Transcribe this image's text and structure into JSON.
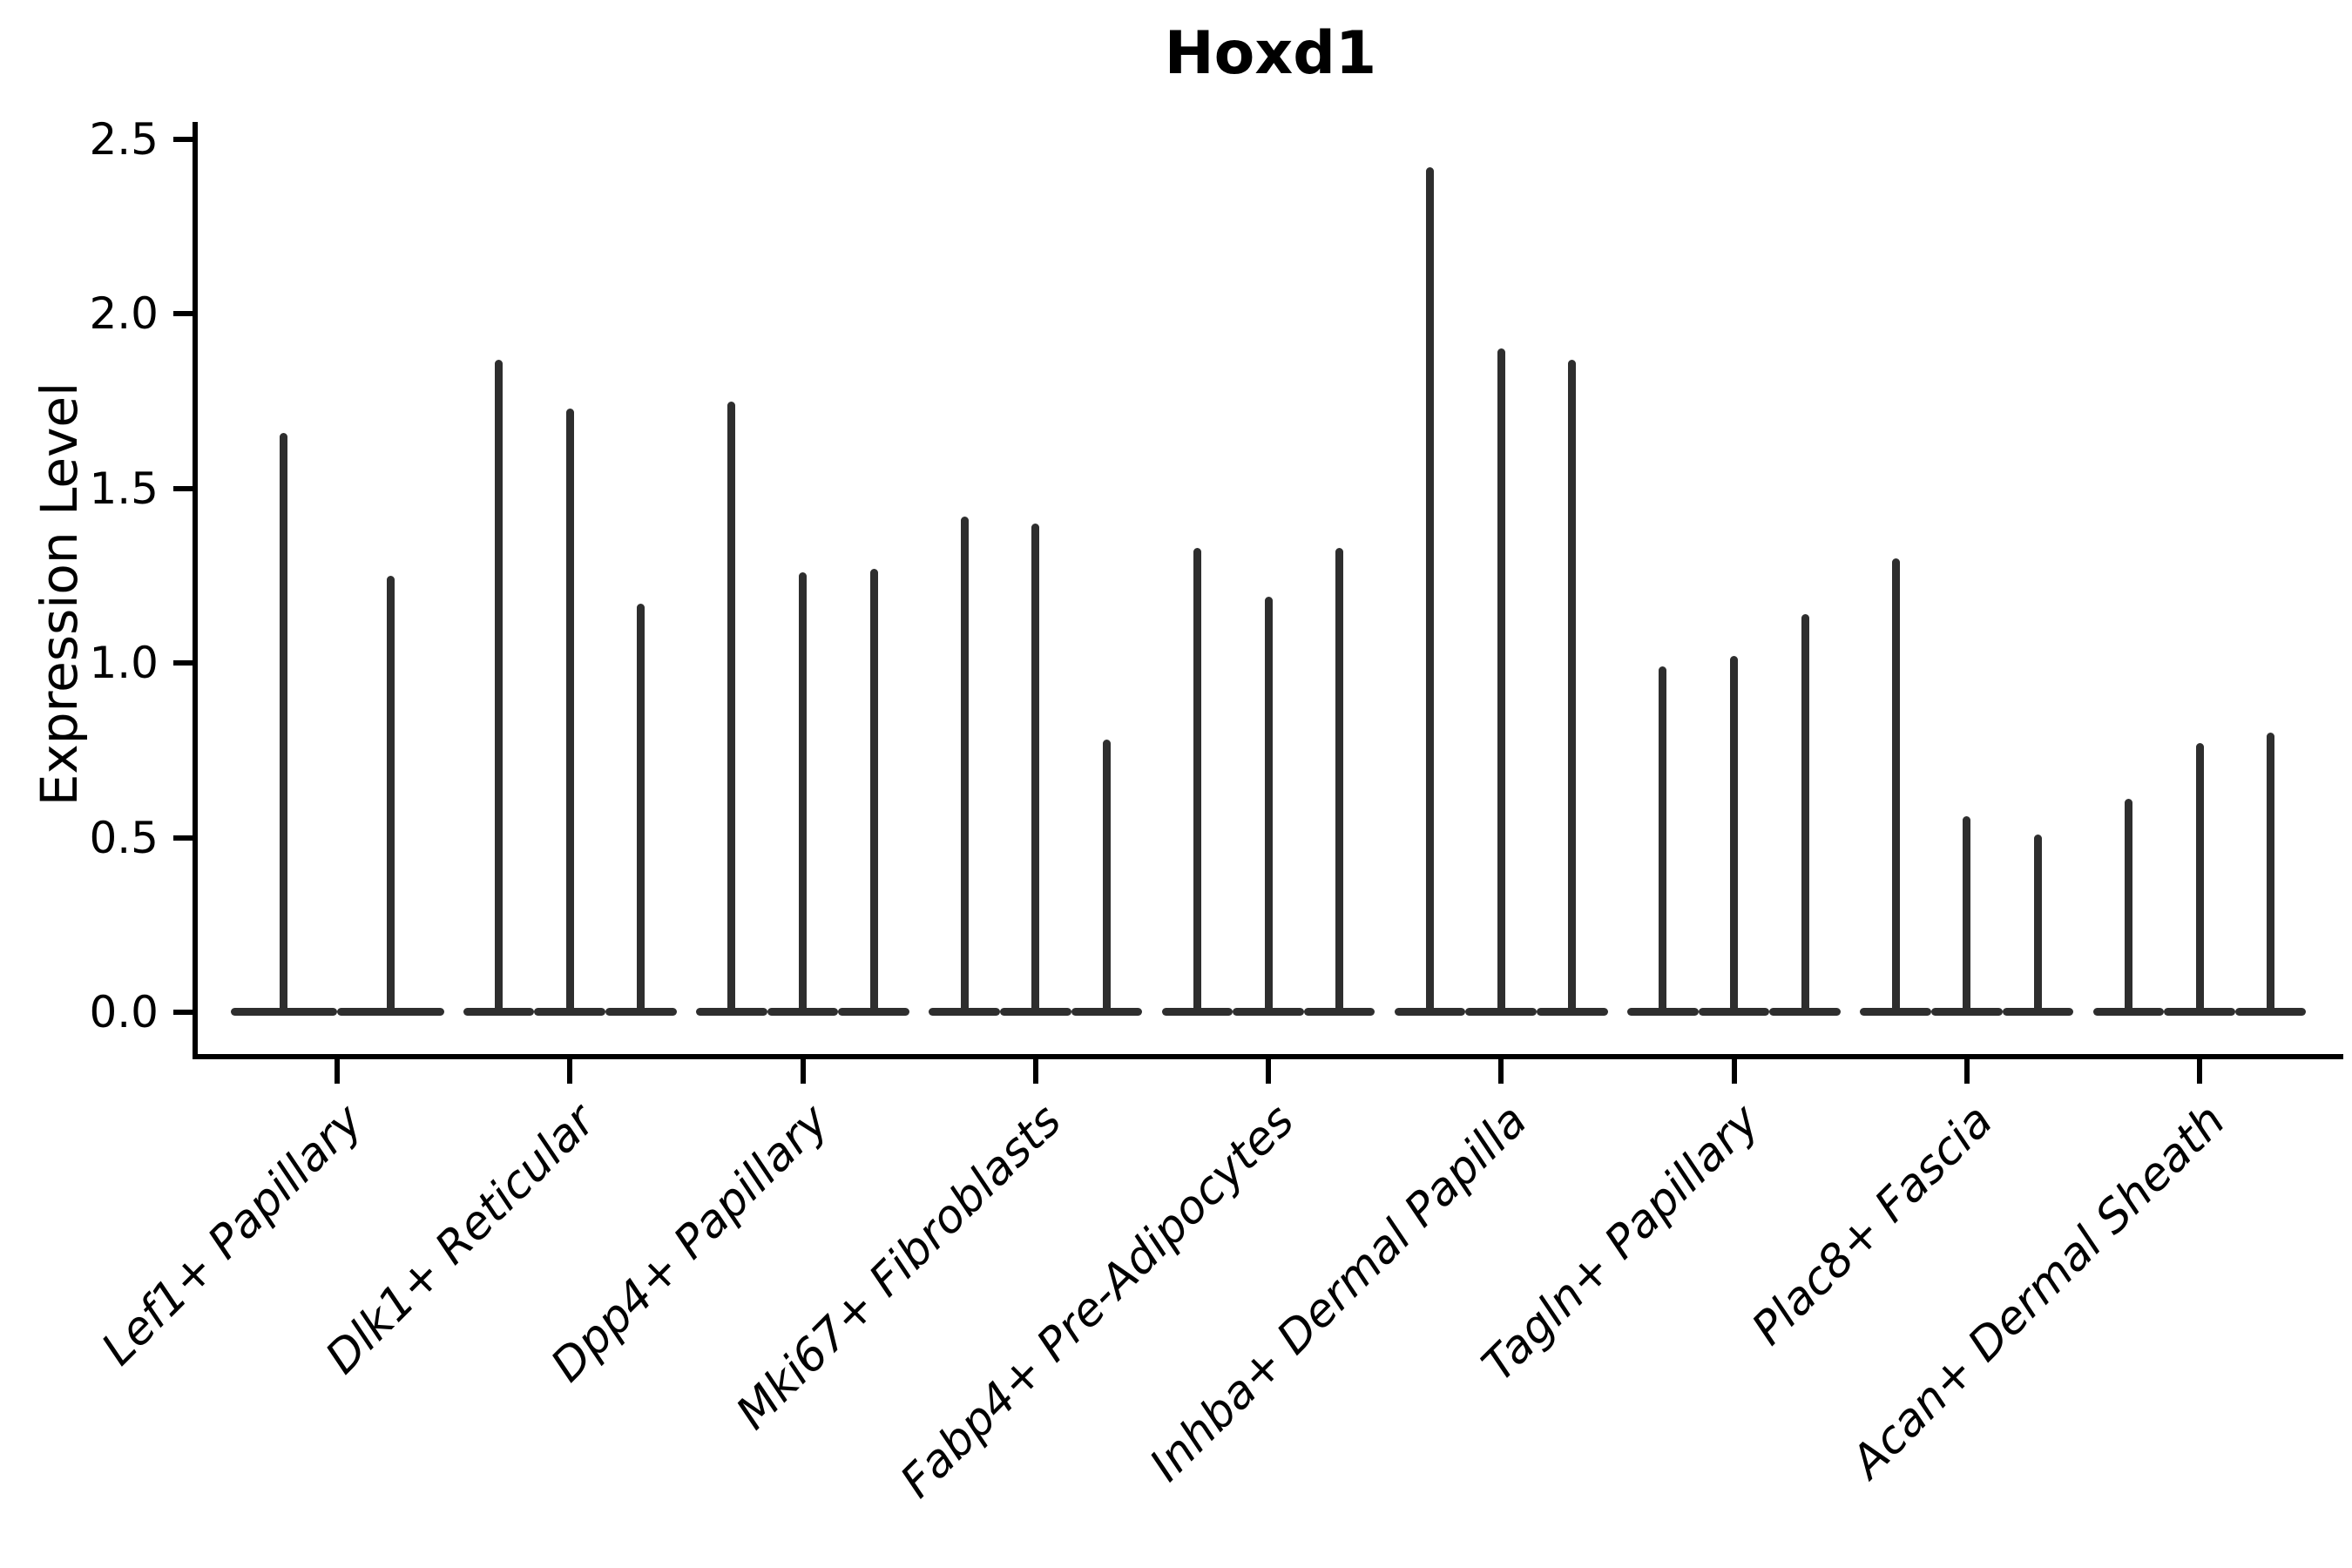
{
  "chart_data": {
    "type": "violin",
    "title": "Hoxd1",
    "xlabel": "",
    "ylabel": "Expression Level",
    "ylim": [
      -0.12,
      2.55
    ],
    "ytick_values": [
      0,
      0.5,
      1.0,
      1.5,
      2.0,
      2.5
    ],
    "ytick_labels": [
      "0.0",
      "0.5",
      "1.0",
      "1.5",
      "2.0",
      "2.5"
    ],
    "grid": false,
    "legend_position": "none",
    "violin_color": "#2e2e2e",
    "axis_color": "#000000",
    "violin_shape_note": "each violin is a narrow needle: density concentrated at 0 (wide flat base) with a thin spike reaching the max expression value",
    "categories": [
      "Lef1+ Papillary",
      "Dlk1+ Reticular",
      "Dpp4+ Papillary",
      "Mki67+ Fibroblasts",
      "Fabp4+ Pre-Adipocytes",
      "Inhba+ Dermal Papilla",
      "Tagln+ Papillary",
      "Plac8+ Fascia",
      "Acan+ Dermal Sheath"
    ],
    "groups": [
      {
        "category": "Lef1+ Papillary",
        "violin_maxima": [
          1.66,
          1.25
        ]
      },
      {
        "category": "Dlk1+ Reticular",
        "violin_maxima": [
          1.87,
          1.73,
          1.17
        ]
      },
      {
        "category": "Dpp4+ Papillary",
        "violin_maxima": [
          1.75,
          1.26,
          1.27
        ]
      },
      {
        "category": "Mki67+ Fibroblasts",
        "violin_maxima": [
          1.42,
          1.4,
          0.78
        ]
      },
      {
        "category": "Fabp4+ Pre-Adipocytes",
        "violin_maxima": [
          1.33,
          1.19,
          1.33
        ]
      },
      {
        "category": "Inhba+ Dermal Papilla",
        "violin_maxima": [
          2.42,
          1.9,
          1.87
        ]
      },
      {
        "category": "Tagln+ Papillary",
        "violin_maxima": [
          0.99,
          1.02,
          1.14
        ]
      },
      {
        "category": "Plac8+ Fascia",
        "violin_maxima": [
          1.3,
          0.56,
          0.51
        ]
      },
      {
        "category": "Acan+ Dermal Sheath",
        "violin_maxima": [
          0.61,
          0.77,
          0.8
        ]
      }
    ]
  }
}
